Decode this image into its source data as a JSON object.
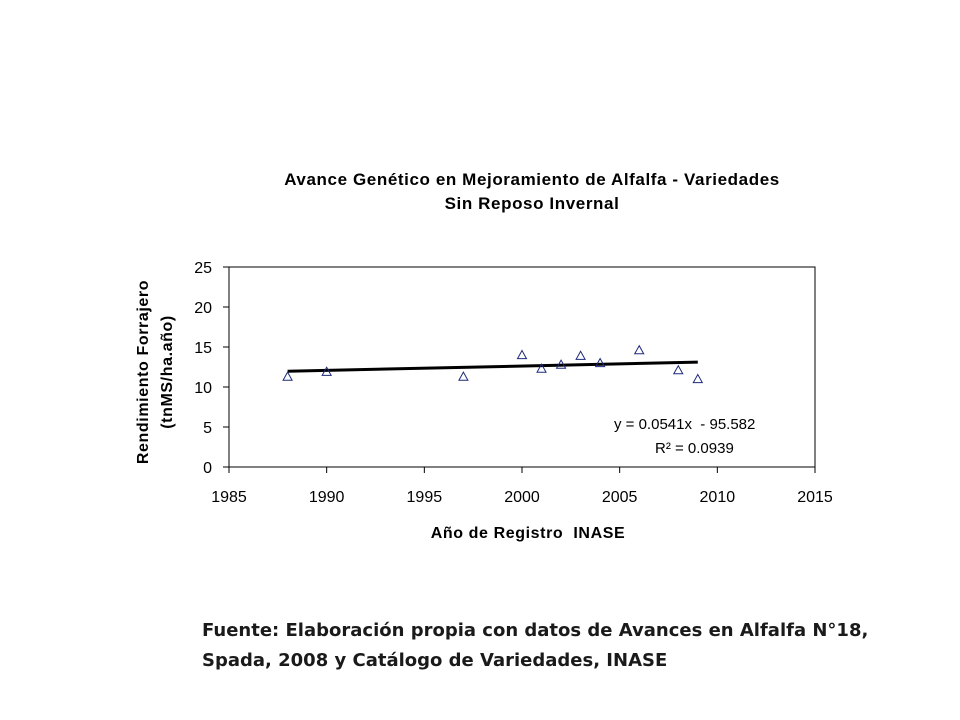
{
  "chart_data": {
    "type": "scatter",
    "title_line1": "Avance Genético en Mejoramiento de Alfalfa - Variedades",
    "title_line2": "Sin Reposo Invernal",
    "xlabel": "Año de Registro  INASE",
    "ylabel_line1": "Rendimiento Forrajero",
    "ylabel_line2": "(tnMS/ha.año)",
    "xlim": [
      1985,
      2015
    ],
    "ylim": [
      0,
      25
    ],
    "xticks": [
      "1985",
      "1990",
      "1995",
      "2000",
      "2005",
      "2010",
      "2015"
    ],
    "yticks": [
      "0",
      "5",
      "10",
      "15",
      "20",
      "25"
    ],
    "grid": false,
    "marker": "triangle",
    "marker_color": "#1f2a7a",
    "points": [
      {
        "x": 1988,
        "y": 11.3
      },
      {
        "x": 1990,
        "y": 11.9
      },
      {
        "x": 1997,
        "y": 11.3
      },
      {
        "x": 2000,
        "y": 14.0
      },
      {
        "x": 2001,
        "y": 12.3
      },
      {
        "x": 2002,
        "y": 12.8
      },
      {
        "x": 2003,
        "y": 13.9
      },
      {
        "x": 2004,
        "y": 13.0
      },
      {
        "x": 2006,
        "y": 14.6
      },
      {
        "x": 2008,
        "y": 12.1
      },
      {
        "x": 2009,
        "y": 11.0
      }
    ],
    "trendline": {
      "slope": 0.0541,
      "intercept": -95.582,
      "x_range": [
        1988,
        2009
      ],
      "equation": "y = 0.0541x  - 95.582",
      "r_squared": "R² = 0.0939"
    }
  },
  "source_line1": "Fuente: Elaboración propia con datos de Avances en Alfalfa N°18,",
  "source_line2": "Spada, 2008 y Catálogo de Variedades, INASE"
}
